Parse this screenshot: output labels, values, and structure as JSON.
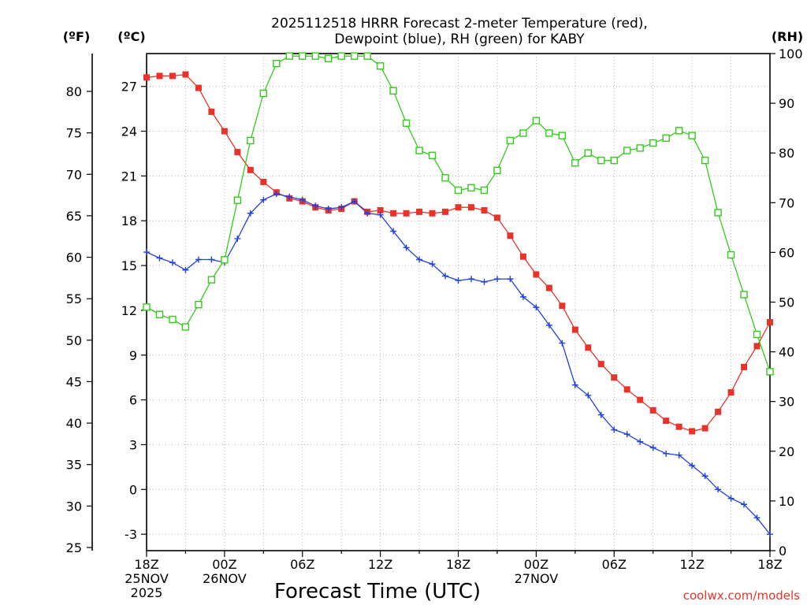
{
  "chart_data": {
    "type": "line",
    "title_lines": [
      "2025112518 HRRR Forecast 2-meter Temperature (red),",
      "Dewpoint (blue), RH (green) for KABY"
    ],
    "xlabel": "Forecast Time (UTC)",
    "credit": "coolwx.com/models",
    "units": {
      "fahrenheit": "(ºF)",
      "celsius": "(ºC)",
      "rh": "(RH)"
    },
    "x_range_hours": [
      0,
      48
    ],
    "celsius_range": [
      -4.1,
      29.2
    ],
    "rh_range": [
      0,
      100
    ],
    "x_ticks": [
      {
        "hour": 0,
        "lines": [
          "18Z",
          "25NOV",
          "2025"
        ]
      },
      {
        "hour": 6,
        "lines": [
          "00Z",
          "26NOV"
        ]
      },
      {
        "hour": 12,
        "lines": [
          "06Z"
        ]
      },
      {
        "hour": 18,
        "lines": [
          "12Z"
        ]
      },
      {
        "hour": 24,
        "lines": [
          "18Z"
        ]
      },
      {
        "hour": 30,
        "lines": [
          "00Z",
          "27NOV"
        ]
      },
      {
        "hour": 36,
        "lines": [
          "06Z"
        ]
      },
      {
        "hour": 42,
        "lines": [
          "12Z"
        ]
      },
      {
        "hour": 48,
        "lines": [
          "18Z"
        ]
      }
    ],
    "celsius_ticks": [
      "-3",
      "0",
      "3",
      "6",
      "9",
      "12",
      "15",
      "18",
      "21",
      "24",
      "27"
    ],
    "fahrenheit_ticks": [
      "25",
      "30",
      "35",
      "40",
      "45",
      "50",
      "55",
      "60",
      "65",
      "70",
      "75",
      "80"
    ],
    "rh_ticks": [
      "0",
      "10",
      "20",
      "30",
      "40",
      "50",
      "60",
      "70",
      "80",
      "90",
      "100"
    ],
    "series": [
      {
        "name": "Temperature",
        "color": "#e8332a",
        "marker": "filled-square",
        "values": [
          27.6,
          27.7,
          27.7,
          27.8,
          26.9,
          25.3,
          24.0,
          22.6,
          21.4,
          20.6,
          19.9,
          19.5,
          19.3,
          18.9,
          18.7,
          18.8,
          19.3,
          18.6,
          18.7,
          18.5,
          18.5,
          18.6,
          18.5,
          18.6,
          18.9,
          18.9,
          18.7,
          18.2,
          17.0,
          15.6,
          14.4,
          13.5,
          12.3,
          10.7,
          9.5,
          8.4,
          7.5,
          6.7,
          6.0,
          5.3,
          4.6,
          4.2,
          3.9,
          4.1,
          5.2,
          6.5,
          8.2,
          9.6,
          11.2
        ]
      },
      {
        "name": "Dewpoint",
        "color": "#2140e0",
        "marker": "plus",
        "values": [
          15.9,
          15.5,
          15.2,
          14.7,
          15.4,
          15.4,
          15.2,
          16.8,
          18.5,
          19.4,
          19.8,
          19.6,
          19.4,
          19.0,
          18.8,
          18.9,
          19.3,
          18.5,
          18.4,
          17.3,
          16.2,
          15.4,
          15.1,
          14.3,
          14.0,
          14.1,
          13.9,
          14.1,
          14.1,
          12.9,
          12.2,
          11.0,
          9.8,
          7.0,
          6.3,
          5.0,
          4.0,
          3.7,
          3.2,
          2.8,
          2.4,
          2.3,
          1.6,
          0.9,
          0.0,
          -0.6,
          -1.0,
          -1.9,
          -3.0
        ]
      },
      {
        "name": "Relative Humidity",
        "color": "#33cc1a",
        "marker": "hollow-square",
        "values": [
          49,
          47.5,
          46.5,
          45,
          49.5,
          54.5,
          58.5,
          70.5,
          82.5,
          92,
          98,
          99.5,
          99.5,
          99.5,
          99,
          99.5,
          99.5,
          99.5,
          97.5,
          92.5,
          86,
          80.5,
          79.5,
          75,
          72.5,
          73,
          72.5,
          76.5,
          82.5,
          84,
          86.5,
          84,
          83.5,
          78,
          80,
          78.5,
          78.5,
          80.5,
          81,
          82,
          83,
          84.5,
          83.5,
          78.5,
          68,
          59.5,
          51.5,
          43.5,
          36
        ]
      }
    ]
  }
}
